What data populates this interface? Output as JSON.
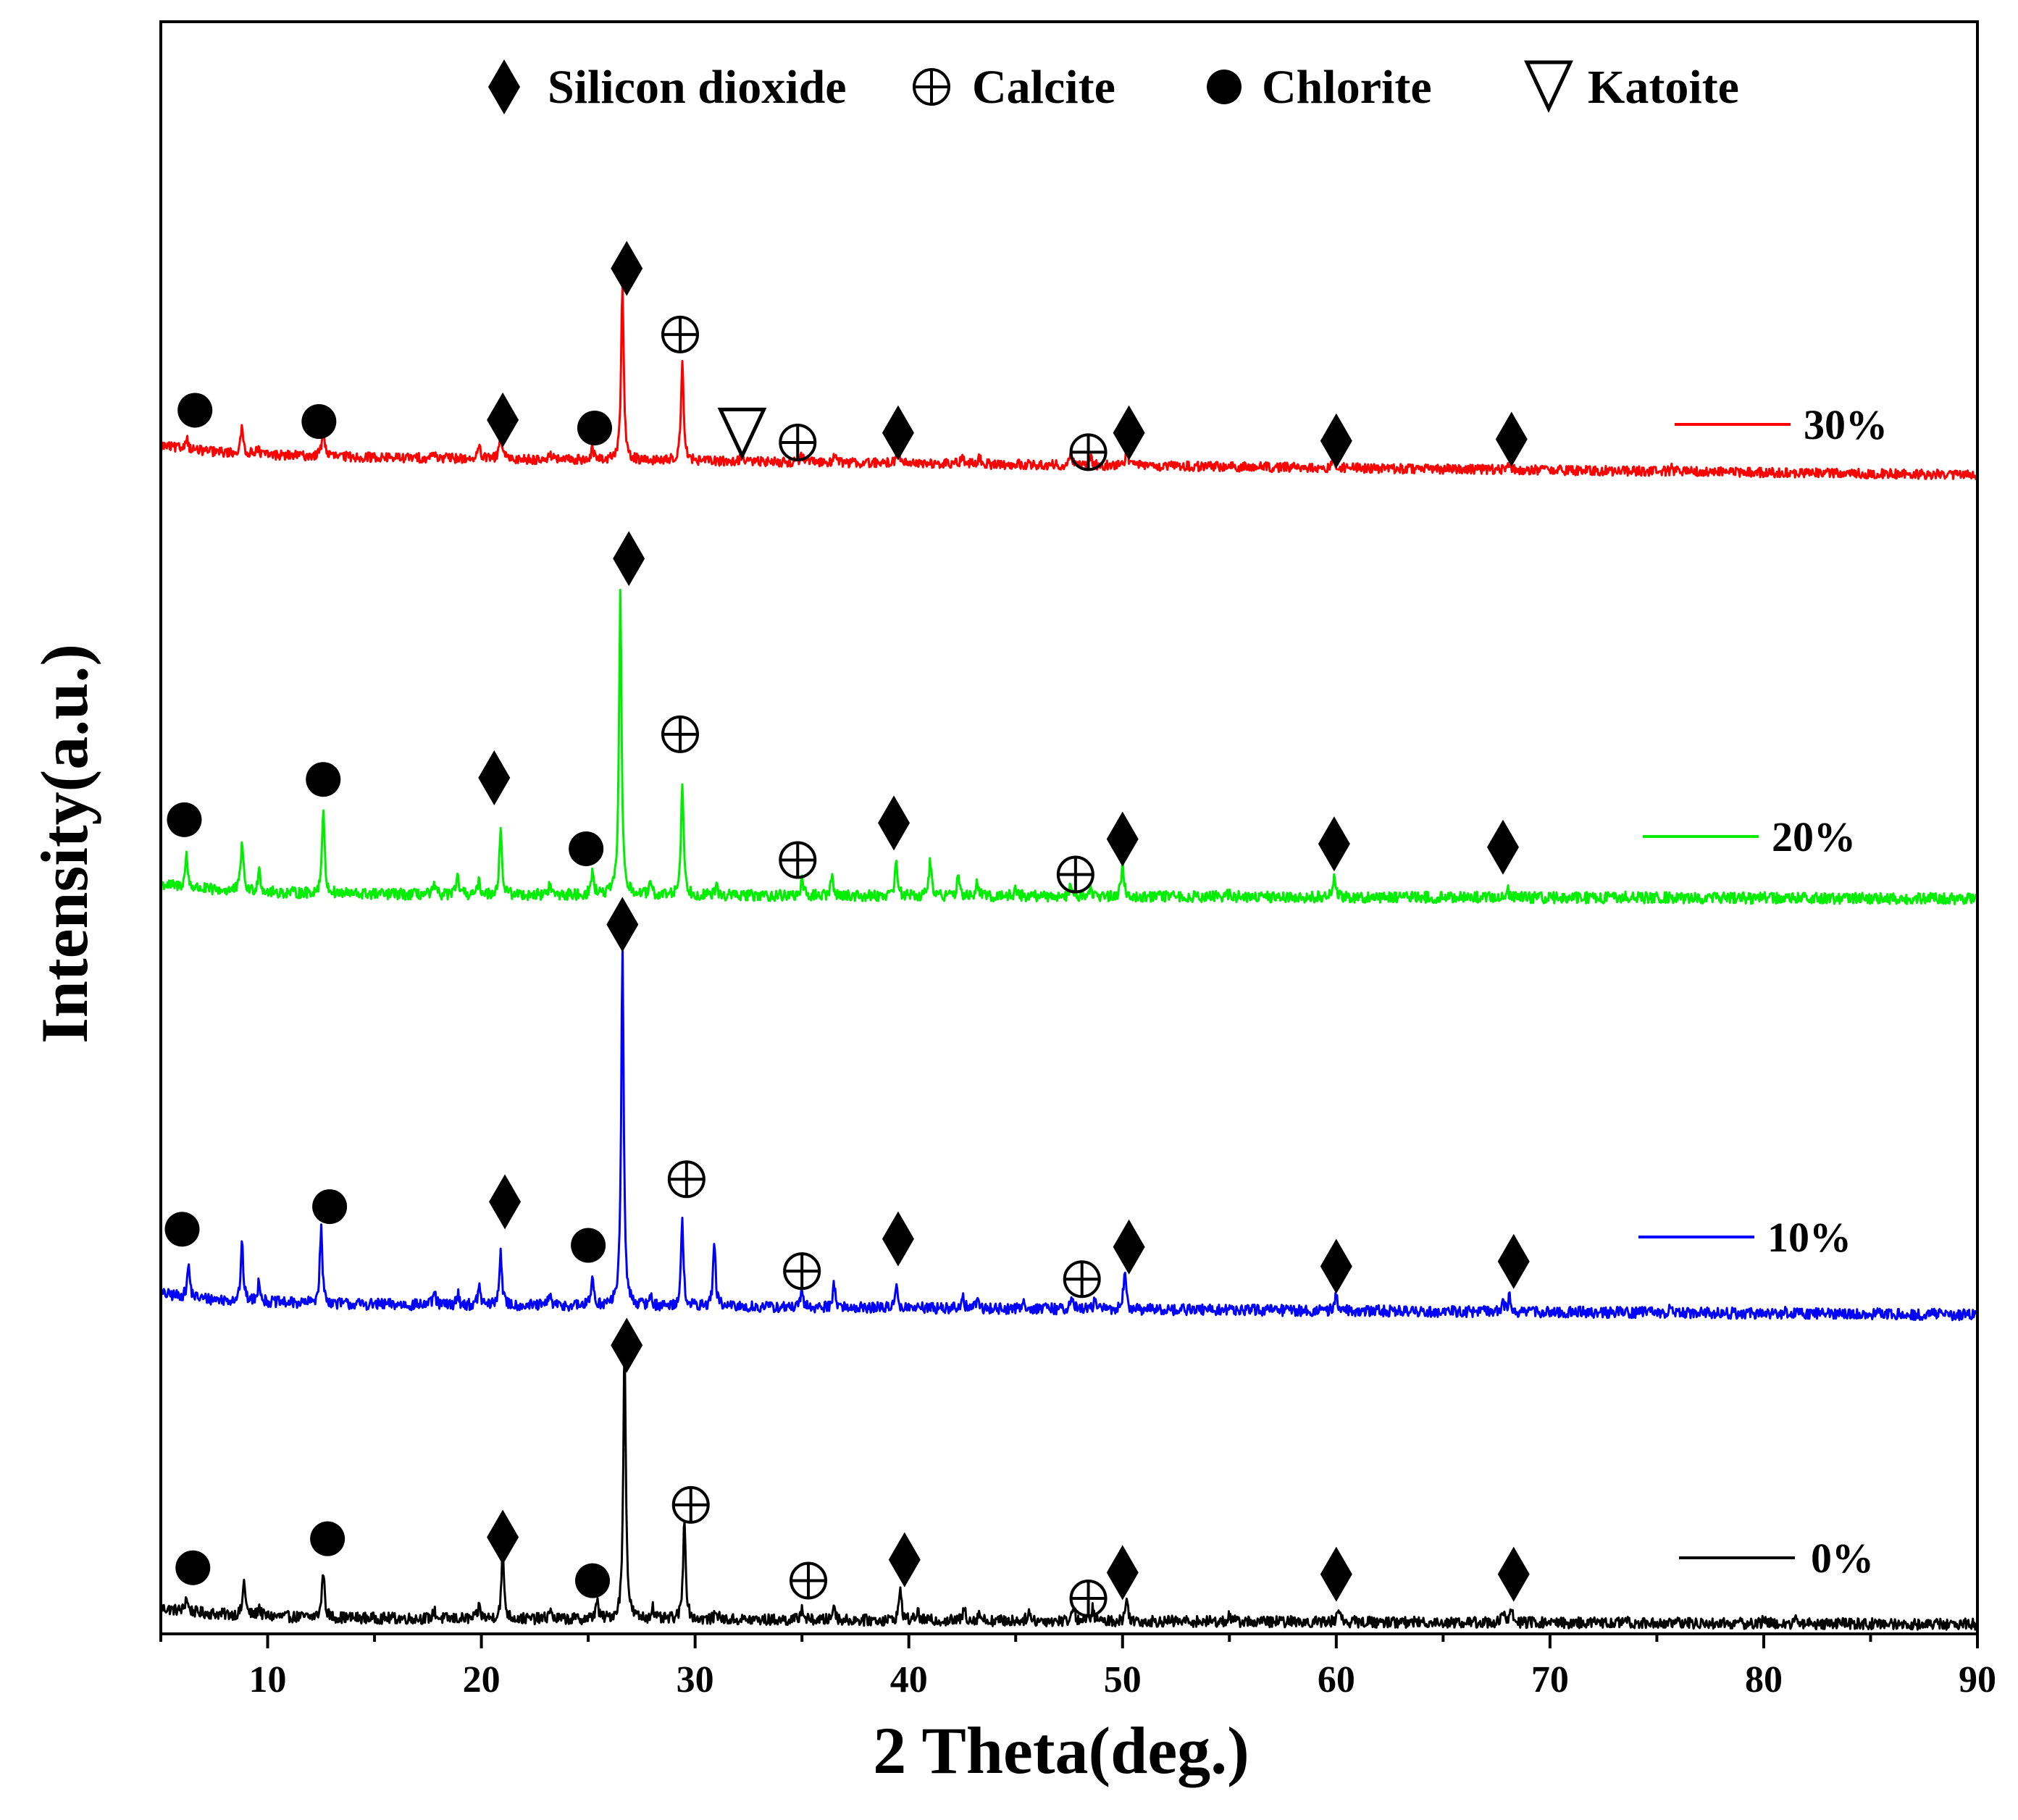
{
  "chart_data": {
    "type": "line",
    "xlabel": "2 Theta(deg.)",
    "ylabel": "Intensity(a.u.)",
    "xlim": [
      5,
      90
    ],
    "xticks": [
      10,
      20,
      30,
      40,
      50,
      60,
      70,
      80,
      90
    ],
    "xtick_labels": [
      "10",
      "20",
      "30",
      "40",
      "50",
      "60",
      "70",
      "80",
      "90"
    ],
    "ylim": [
      0,
      100
    ],
    "y_ticks_shown": false,
    "legend_position": "top",
    "phase_legend": [
      {
        "marker": "diamond",
        "label": "Silicon dioxide"
      },
      {
        "marker": "circle-plus",
        "label": "Calcite"
      },
      {
        "marker": "circle",
        "label": "Chlorite"
      },
      {
        "marker": "triangle-down",
        "label": "Katoite"
      }
    ],
    "series": [
      {
        "name": "0%",
        "color": "#000000",
        "baseline": 1.0,
        "baseline_end": 0.6,
        "noise": 0.35,
        "peaks": [
          [
            6.2,
            0.9
          ],
          [
            8.9,
            2.2
          ],
          [
            9.6,
            0.6
          ],
          [
            12.6,
            3.0
          ],
          [
            17.8,
            0.5
          ],
          [
            19.9,
            0.8
          ],
          [
            21.0,
            4.3
          ],
          [
            23.2,
            0.6
          ],
          [
            25.4,
            1.2
          ],
          [
            26.7,
            17.2
          ],
          [
            28.0,
            0.8
          ],
          [
            29.5,
            6.4
          ],
          [
            31.0,
            0.6
          ],
          [
            35.0,
            0.8
          ],
          [
            36.5,
            1.0
          ],
          [
            39.6,
            2.0
          ],
          [
            40.4,
            0.6
          ],
          [
            42.6,
            0.8
          ],
          [
            43.3,
            0.5
          ],
          [
            45.6,
            0.6
          ],
          [
            47.7,
            1.0
          ],
          [
            48.6,
            0.8
          ],
          [
            50.2,
            1.4
          ],
          [
            55.0,
            0.4
          ],
          [
            60.1,
            1.0
          ],
          [
            67.8,
            0.6
          ],
          [
            68.2,
            0.8
          ],
          [
            73.5,
            0.2
          ],
          [
            80.0,
            0.3
          ],
          [
            81.5,
            0.2
          ]
        ],
        "markers": [
          {
            "x": 6.5,
            "y": 4.1,
            "m": "circle"
          },
          {
            "x": 12.8,
            "y": 5.9,
            "m": "circle"
          },
          {
            "x": 21.0,
            "y": 6.0,
            "m": "diamond"
          },
          {
            "x": 25.2,
            "y": 3.3,
            "m": "circle"
          },
          {
            "x": 26.8,
            "y": 17.9,
            "m": "diamond"
          },
          {
            "x": 29.8,
            "y": 8.0,
            "m": "circle-plus"
          },
          {
            "x": 35.3,
            "y": 3.3,
            "m": "circle-plus"
          },
          {
            "x": 39.8,
            "y": 4.6,
            "m": "diamond"
          },
          {
            "x": 48.4,
            "y": 2.2,
            "m": "circle-plus"
          },
          {
            "x": 50.0,
            "y": 3.8,
            "m": "diamond"
          },
          {
            "x": 60.0,
            "y": 3.7,
            "m": "diamond"
          },
          {
            "x": 68.3,
            "y": 3.7,
            "m": "diamond"
          }
        ]
      },
      {
        "name": "10%",
        "color": "#0000ff",
        "baseline": 20.5,
        "baseline_end": 19.8,
        "noise": 0.35,
        "peaks": [
          [
            6.3,
            2.0
          ],
          [
            8.8,
            3.5
          ],
          [
            9.6,
            1.4
          ],
          [
            12.5,
            4.7
          ],
          [
            17.8,
            0.8
          ],
          [
            18.9,
            0.7
          ],
          [
            19.9,
            1.2
          ],
          [
            20.9,
            3.4
          ],
          [
            23.2,
            0.7
          ],
          [
            25.2,
            1.9
          ],
          [
            26.6,
            22.0
          ],
          [
            27.9,
            0.7
          ],
          [
            29.4,
            5.2
          ],
          [
            30.9,
            4.0
          ],
          [
            35.0,
            0.9
          ],
          [
            36.5,
            1.5
          ],
          [
            39.4,
            1.4
          ],
          [
            42.5,
            0.8
          ],
          [
            43.2,
            0.6
          ],
          [
            45.4,
            0.5
          ],
          [
            47.6,
            0.8
          ],
          [
            48.7,
            0.6
          ],
          [
            50.1,
            2.3
          ],
          [
            60.0,
            1.0
          ],
          [
            67.8,
            0.5
          ],
          [
            68.1,
            0.9
          ],
          [
            75.6,
            0.2
          ],
          [
            81.0,
            0.2
          ]
        ],
        "markers": [
          {
            "x": 6.0,
            "y": 25.1,
            "m": "circle"
          },
          {
            "x": 12.9,
            "y": 26.5,
            "m": "circle"
          },
          {
            "x": 21.1,
            "y": 26.8,
            "m": "diamond"
          },
          {
            "x": 25.0,
            "y": 24.1,
            "m": "circle"
          },
          {
            "x": 26.6,
            "y": 44.0,
            "m": "diamond"
          },
          {
            "x": 29.6,
            "y": 28.2,
            "m": "circle-plus"
          },
          {
            "x": 35.0,
            "y": 22.5,
            "m": "circle-plus"
          },
          {
            "x": 39.5,
            "y": 24.5,
            "m": "diamond"
          },
          {
            "x": 48.1,
            "y": 22.0,
            "m": "circle-plus"
          },
          {
            "x": 50.3,
            "y": 24.0,
            "m": "diamond"
          },
          {
            "x": 60.0,
            "y": 22.8,
            "m": "diamond"
          },
          {
            "x": 68.3,
            "y": 23.1,
            "m": "diamond"
          }
        ]
      },
      {
        "name": "20%",
        "color": "#00ee00",
        "baseline": 45.9,
        "baseline_end": 45.6,
        "noise": 0.35,
        "peaks": [
          [
            6.2,
            2.0
          ],
          [
            8.8,
            3.2
          ],
          [
            9.6,
            1.5
          ],
          [
            12.6,
            5.3
          ],
          [
            17.8,
            0.5
          ],
          [
            18.9,
            1.1
          ],
          [
            19.9,
            0.8
          ],
          [
            20.9,
            4.1
          ],
          [
            23.2,
            0.6
          ],
          [
            25.2,
            1.5
          ],
          [
            26.5,
            18.8
          ],
          [
            27.9,
            0.6
          ],
          [
            29.4,
            7.2
          ],
          [
            31.0,
            0.5
          ],
          [
            35.0,
            0.9
          ],
          [
            36.4,
            1.2
          ],
          [
            39.4,
            2.2
          ],
          [
            41.0,
            2.2
          ],
          [
            42.3,
            1.1
          ],
          [
            43.2,
            0.8
          ],
          [
            45.0,
            0.6
          ],
          [
            47.6,
            0.8
          ],
          [
            48.5,
            0.6
          ],
          [
            50.0,
            2.1
          ],
          [
            55.0,
            0.3
          ],
          [
            59.9,
            1.2
          ],
          [
            68.0,
            0.6
          ],
          [
            73.5,
            0.2
          ],
          [
            80.0,
            0.2
          ]
        ],
        "markers": [
          {
            "x": 6.1,
            "y": 50.5,
            "m": "circle"
          },
          {
            "x": 12.6,
            "y": 53.0,
            "m": "circle"
          },
          {
            "x": 20.6,
            "y": 53.1,
            "m": "diamond"
          },
          {
            "x": 24.9,
            "y": 48.7,
            "m": "circle"
          },
          {
            "x": 26.9,
            "y": 66.7,
            "m": "diamond"
          },
          {
            "x": 29.3,
            "y": 55.8,
            "m": "circle-plus"
          },
          {
            "x": 34.8,
            "y": 48.0,
            "m": "circle-plus"
          },
          {
            "x": 39.3,
            "y": 50.3,
            "m": "diamond"
          },
          {
            "x": 47.8,
            "y": 47.1,
            "m": "circle-plus"
          },
          {
            "x": 50.0,
            "y": 49.3,
            "m": "diamond"
          },
          {
            "x": 59.9,
            "y": 49.0,
            "m": "diamond"
          },
          {
            "x": 67.8,
            "y": 48.8,
            "m": "diamond"
          }
        ]
      },
      {
        "name": "30%",
        "color": "#ff0000",
        "baseline": 73.1,
        "baseline_end": 71.9,
        "noise": 0.3,
        "peaks": [
          [
            6.2,
            0.8
          ],
          [
            8.8,
            1.6
          ],
          [
            9.5,
            0.5
          ],
          [
            12.6,
            2.0
          ],
          [
            17.8,
            0.4
          ],
          [
            19.9,
            0.7
          ],
          [
            20.9,
            1.6
          ],
          [
            23.2,
            0.4
          ],
          [
            25.2,
            0.7
          ],
          [
            26.6,
            11.0
          ],
          [
            29.4,
            6.4
          ],
          [
            32.2,
            0.4
          ],
          [
            35.0,
            0.5
          ],
          [
            36.5,
            0.5
          ],
          [
            39.5,
            1.2
          ],
          [
            42.5,
            0.6
          ],
          [
            43.3,
            0.4
          ],
          [
            47.6,
            0.6
          ],
          [
            48.5,
            0.5
          ],
          [
            50.2,
            1.2
          ],
          [
            59.9,
            0.6
          ],
          [
            68.1,
            0.4
          ],
          [
            75.7,
            0.2
          ]
        ],
        "markers": [
          {
            "x": 6.6,
            "y": 75.9,
            "m": "circle"
          },
          {
            "x": 12.4,
            "y": 75.2,
            "m": "circle"
          },
          {
            "x": 21.0,
            "y": 75.3,
            "m": "diamond"
          },
          {
            "x": 25.3,
            "y": 74.8,
            "m": "circle"
          },
          {
            "x": 26.8,
            "y": 84.7,
            "m": "diamond"
          },
          {
            "x": 29.3,
            "y": 80.6,
            "m": "circle-plus"
          },
          {
            "x": 32.2,
            "y": 74.6,
            "m": "triangle-down"
          },
          {
            "x": 34.8,
            "y": 73.9,
            "m": "circle-plus"
          },
          {
            "x": 39.5,
            "y": 74.5,
            "m": "diamond"
          },
          {
            "x": 48.4,
            "y": 73.3,
            "m": "circle-plus"
          },
          {
            "x": 50.3,
            "y": 74.5,
            "m": "diamond"
          },
          {
            "x": 60.0,
            "y": 74.0,
            "m": "diamond"
          },
          {
            "x": 68.2,
            "y": 74.1,
            "m": "diamond"
          }
        ]
      }
    ]
  }
}
